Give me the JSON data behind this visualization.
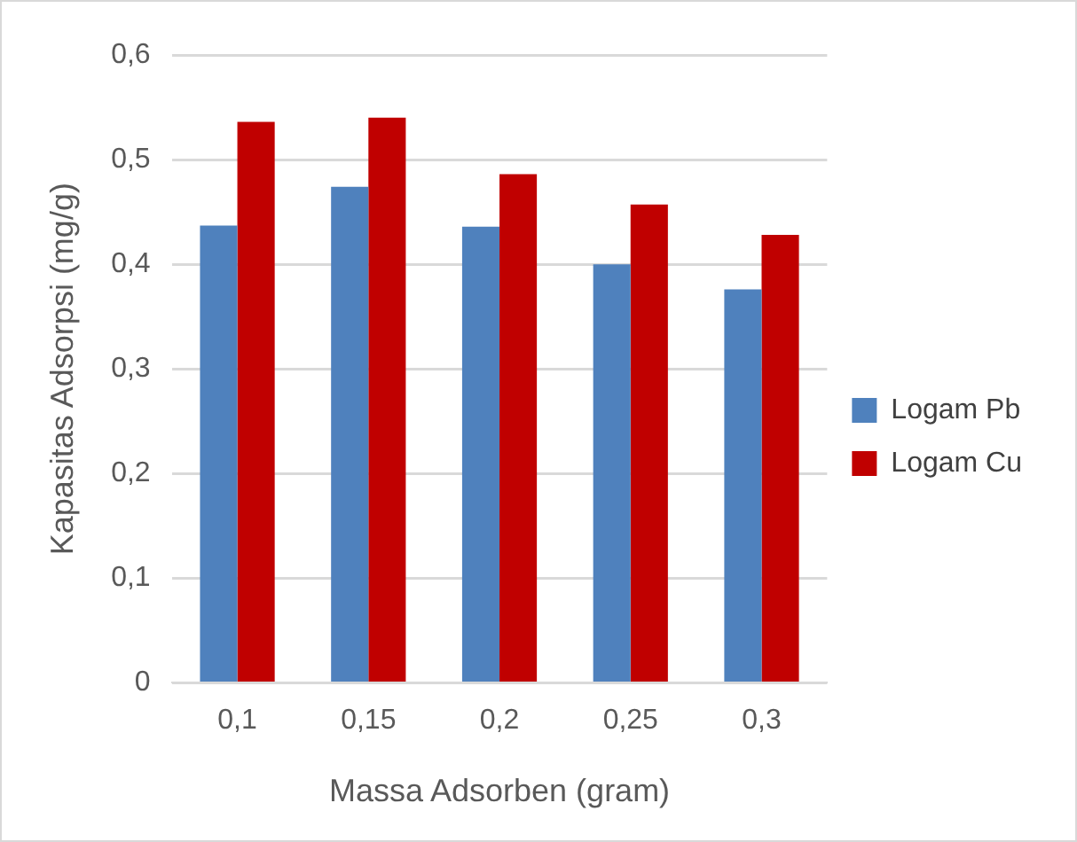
{
  "chart_data": {
    "type": "bar",
    "xlabel": "Massa Adsorben (gram)",
    "ylabel": "Kapasitas Adsorpsi (mg/g)",
    "categories": [
      "0,1",
      "0,15",
      "0,2",
      "0,25",
      "0,3"
    ],
    "series": [
      {
        "name": "Logam Pb",
        "color": "#4f81bd",
        "values": [
          0.437,
          0.474,
          0.436,
          0.4,
          0.376
        ]
      },
      {
        "name": "Logam Cu",
        "color": "#c00000",
        "values": [
          0.536,
          0.54,
          0.486,
          0.457,
          0.428
        ]
      }
    ],
    "ylim": [
      0,
      0.6
    ],
    "yticks": [
      0,
      {
        "value": 0.1,
        "label": "0,1"
      },
      {
        "value": 0.2,
        "label": "0,2"
      },
      {
        "value": 0.3,
        "label": "0,3"
      },
      {
        "value": 0.4,
        "label": "0,4"
      },
      {
        "value": 0.5,
        "label": "0,5"
      },
      {
        "value": 0.6,
        "label": "0,6"
      }
    ],
    "grid": "y",
    "legend": "right"
  }
}
